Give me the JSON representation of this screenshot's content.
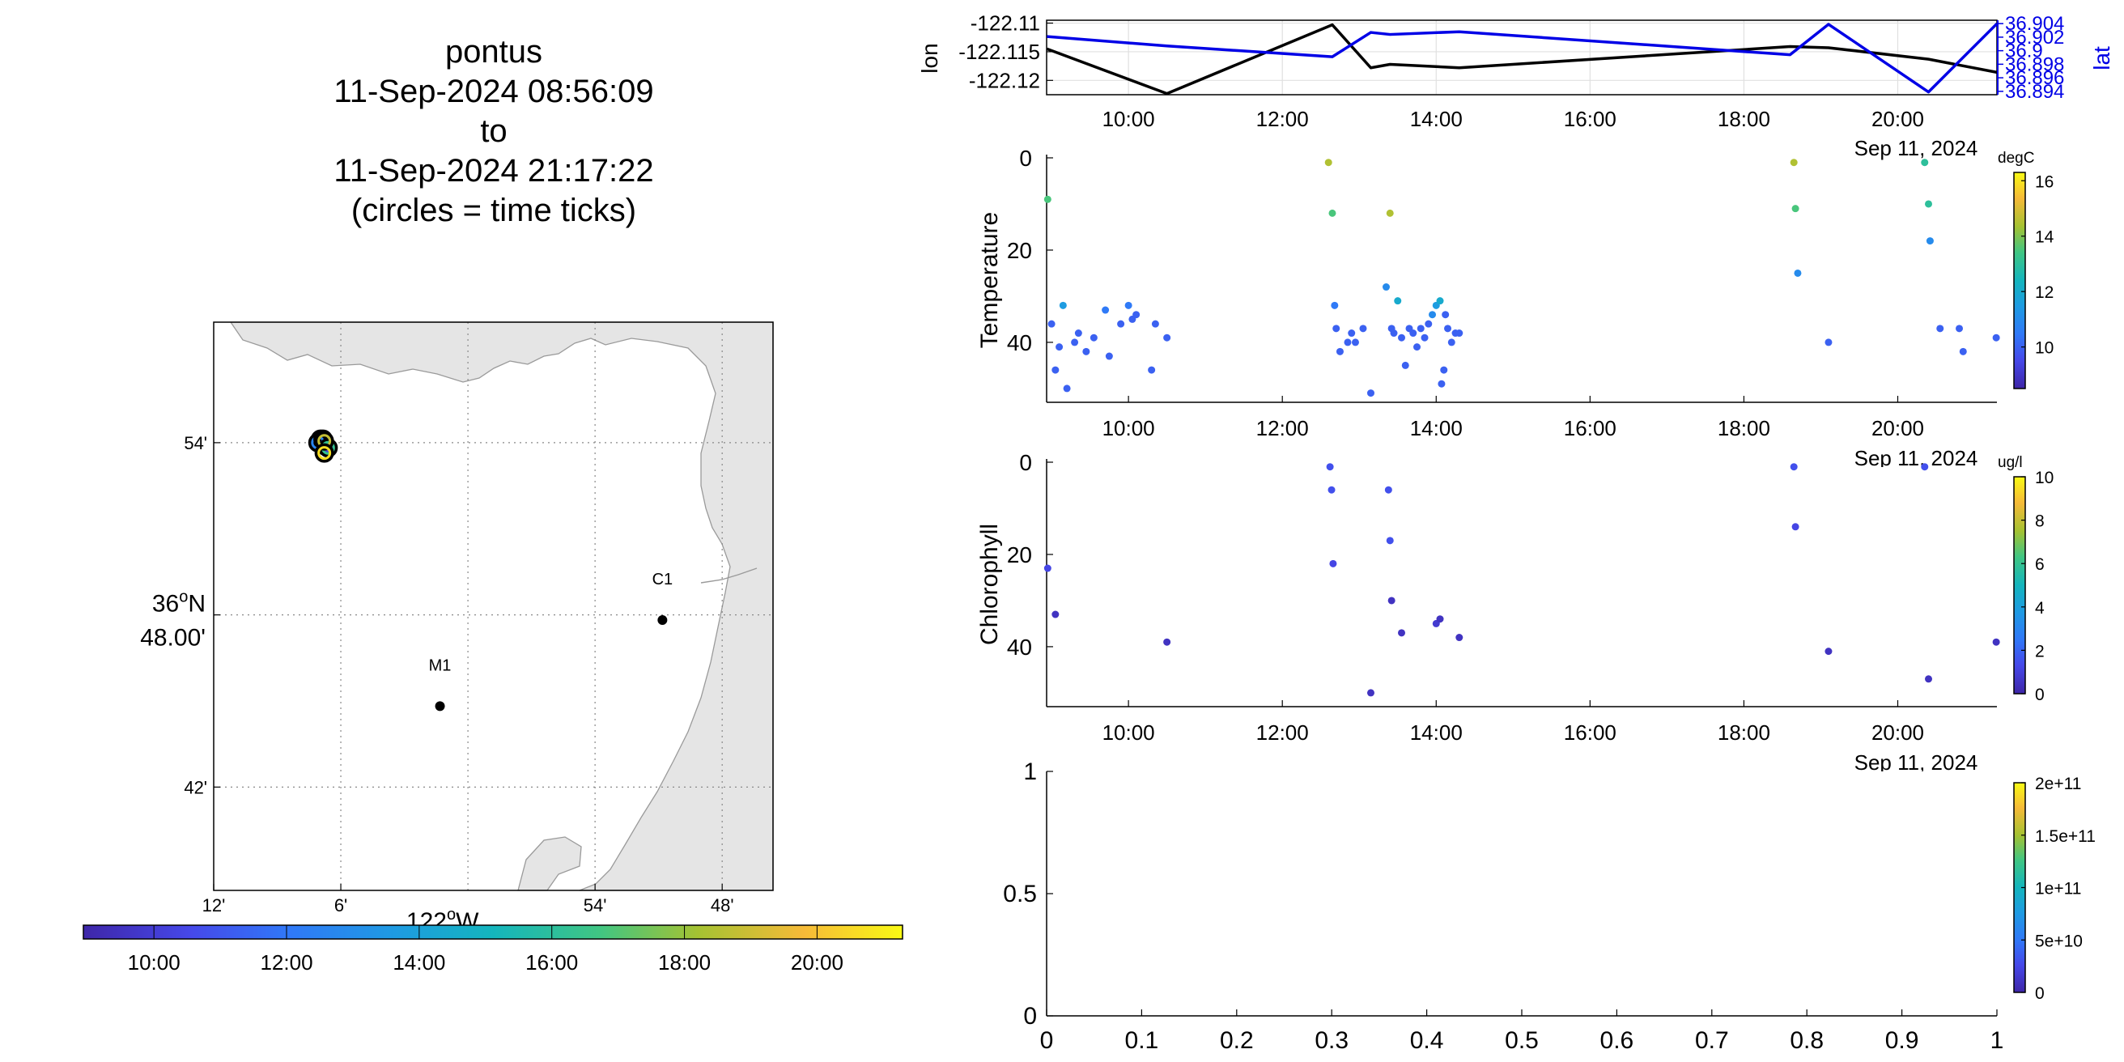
{
  "map_title": {
    "lines": [
      "pontus",
      "11-Sep-2024 08:56:09",
      "to",
      "11-Sep-2024 21:17:22",
      "(circles = time ticks)"
    ]
  },
  "map": {
    "lat_ticks": [
      {
        "lat": 36.9,
        "label": "54'"
      },
      {
        "lat": 36.8,
        "label_deg": "36",
        "label_min": "48.00'"
      },
      {
        "lat": 36.7,
        "label": "42'"
      }
    ],
    "lon_ticks": [
      {
        "lon": -122.2,
        "label": "12'"
      },
      {
        "lon": -122.1,
        "label": "6'"
      },
      {
        "lon": -121.9,
        "label": "54'"
      },
      {
        "lon": -121.8,
        "label": "48'"
      }
    ],
    "lon_axis_deg": "122",
    "lon_axis_hemi": "W",
    "lat_axis_hemi": "N",
    "grid_lons": [
      -122.1,
      -122.0,
      -121.9,
      -121.8
    ],
    "grid_lats": [
      36.9,
      36.8,
      36.7
    ],
    "stations": [
      {
        "name": "C1",
        "lat": 36.797,
        "lon": -121.847
      },
      {
        "name": "M1",
        "lat": 36.747,
        "lon": -122.022
      }
    ],
    "track_points": [
      {
        "lat": 36.902,
        "lon": -122.116,
        "t": 0.0
      },
      {
        "lat": 36.898,
        "lon": -122.112,
        "t": 0.1
      },
      {
        "lat": 36.9,
        "lon": -122.118,
        "t": 0.3
      },
      {
        "lat": 36.902,
        "lon": -122.114,
        "t": 0.45
      },
      {
        "lat": 36.897,
        "lon": -122.11,
        "t": 0.6
      },
      {
        "lat": 36.901,
        "lon": -122.113,
        "t": 0.8
      },
      {
        "lat": 36.894,
        "lon": -122.113,
        "t": 0.95
      }
    ],
    "colorbar": {
      "ticks": [
        "10:00",
        "12:00",
        "14:00",
        "16:00",
        "18:00",
        "20:00"
      ],
      "ticks_hours": [
        10,
        12,
        14,
        16,
        18,
        20
      ],
      "range_hours": [
        8.936,
        21.289
      ]
    }
  },
  "chart_data": [
    {
      "type": "line",
      "name": "position",
      "x_range_hours": [
        8.936,
        21.289
      ],
      "x_ticks": [
        "10:00",
        "12:00",
        "14:00",
        "16:00",
        "18:00",
        "20:00"
      ],
      "x_ticks_hours": [
        10,
        12,
        14,
        16,
        18,
        20
      ],
      "ylabel_left": "lon",
      "ylabel_right": "lat",
      "left_ticks": [
        "-122.11",
        "-122.115",
        "-122.12"
      ],
      "left_ticks_values": [
        -122.11,
        -122.115,
        -122.12
      ],
      "left_range": [
        -122.1225,
        -122.1095
      ],
      "right_ticks": [
        "36.904",
        "36.902",
        "36.9",
        "36.898",
        "36.896",
        "36.894"
      ],
      "right_ticks_values": [
        36.904,
        36.902,
        36.9,
        36.898,
        36.896,
        36.894
      ],
      "right_range": [
        36.8935,
        36.9045
      ],
      "date_label": "Sep 11, 2024",
      "series": [
        {
          "name": "lon",
          "color": "#000000",
          "hours": [
            8.94,
            10.5,
            12.65,
            13.15,
            13.4,
            14.3,
            18.6,
            19.1,
            20.4,
            21.29
          ],
          "values": [
            -122.1145,
            -122.1223,
            -122.1103,
            -122.1178,
            -122.1172,
            -122.1178,
            -122.1141,
            -122.1143,
            -122.1163,
            -122.1186
          ]
        },
        {
          "name": "lat",
          "color": "#0000e6",
          "hours": [
            8.94,
            10.5,
            12.65,
            13.15,
            13.4,
            14.3,
            18.6,
            19.1,
            20.4,
            21.29
          ],
          "values": [
            36.9021,
            36.9007,
            36.8991,
            36.9027,
            36.9024,
            36.9028,
            36.8994,
            36.9039,
            36.8939,
            36.904
          ]
        }
      ]
    },
    {
      "type": "scatter",
      "name": "temperature",
      "ylabel": "Temperature",
      "y_ticks": [
        "0",
        "20",
        "40"
      ],
      "y_ticks_values": [
        0,
        20,
        40
      ],
      "y_range": [
        0,
        53
      ],
      "x_range_hours": [
        8.936,
        21.289
      ],
      "x_ticks": [
        "10:00",
        "12:00",
        "14:00",
        "16:00",
        "18:00",
        "20:00"
      ],
      "x_ticks_hours": [
        10,
        12,
        14,
        16,
        18,
        20
      ],
      "date_label": "Sep 11, 2024",
      "colorbar_label": "degC",
      "colorbar_ticks": [
        "16",
        "14",
        "12",
        "10"
      ],
      "colorbar_ticks_values": [
        16,
        14,
        12,
        10
      ],
      "colorbar_range": [
        8.5,
        16.3
      ],
      "points": [
        [
          8.95,
          9,
          13.5
        ],
        [
          9.0,
          36,
          10
        ],
        [
          9.05,
          46,
          10
        ],
        [
          9.1,
          41,
          10
        ],
        [
          9.15,
          32,
          11.5
        ],
        [
          9.2,
          50,
          10
        ],
        [
          9.3,
          40,
          10
        ],
        [
          9.35,
          38,
          10
        ],
        [
          9.45,
          42,
          10
        ],
        [
          9.55,
          39,
          10
        ],
        [
          9.7,
          33,
          10.5
        ],
        [
          9.75,
          43,
          10
        ],
        [
          9.9,
          36,
          10
        ],
        [
          10.0,
          32,
          10.5
        ],
        [
          10.05,
          35,
          10
        ],
        [
          10.1,
          34,
          10
        ],
        [
          10.3,
          46,
          10
        ],
        [
          10.35,
          36,
          10
        ],
        [
          10.5,
          39,
          10
        ],
        [
          12.6,
          1,
          14.5
        ],
        [
          12.65,
          12,
          13.5
        ],
        [
          12.68,
          32,
          10.5
        ],
        [
          12.7,
          37,
          10
        ],
        [
          12.75,
          42,
          10
        ],
        [
          12.85,
          40,
          10
        ],
        [
          12.9,
          38,
          10
        ],
        [
          12.95,
          40,
          10
        ],
        [
          13.05,
          37,
          10
        ],
        [
          13.15,
          51,
          10
        ],
        [
          13.35,
          28,
          11
        ],
        [
          13.4,
          12,
          14.5
        ],
        [
          13.42,
          37,
          10
        ],
        [
          13.45,
          38,
          10
        ],
        [
          13.5,
          31,
          12
        ],
        [
          13.55,
          39,
          10
        ],
        [
          13.6,
          45,
          10
        ],
        [
          13.65,
          37,
          10
        ],
        [
          13.7,
          38,
          10
        ],
        [
          13.75,
          41,
          10
        ],
        [
          13.8,
          37,
          10
        ],
        [
          13.85,
          39,
          10
        ],
        [
          13.9,
          36,
          10
        ],
        [
          13.95,
          34,
          11
        ],
        [
          14.0,
          32,
          11.5
        ],
        [
          14.05,
          31,
          12
        ],
        [
          14.07,
          49,
          10
        ],
        [
          14.1,
          46,
          10
        ],
        [
          14.12,
          34,
          10
        ],
        [
          14.15,
          37,
          10
        ],
        [
          14.2,
          40,
          10
        ],
        [
          14.25,
          38,
          10
        ],
        [
          14.3,
          38,
          10
        ],
        [
          18.65,
          1,
          14.5
        ],
        [
          18.67,
          11,
          13.5
        ],
        [
          18.7,
          25,
          11
        ],
        [
          19.1,
          40,
          10
        ],
        [
          20.35,
          1,
          13
        ],
        [
          20.4,
          10,
          13
        ],
        [
          20.42,
          18,
          11
        ],
        [
          20.55,
          37,
          10
        ],
        [
          20.8,
          37,
          10
        ],
        [
          20.85,
          42,
          10
        ],
        [
          21.28,
          39,
          10
        ]
      ]
    },
    {
      "type": "scatter",
      "name": "chlorophyll",
      "ylabel": "Chlorophyll",
      "y_ticks": [
        "0",
        "20",
        "40"
      ],
      "y_ticks_values": [
        0,
        20,
        40
      ],
      "y_range": [
        0,
        53
      ],
      "x_range_hours": [
        8.936,
        21.289
      ],
      "x_ticks": [
        "10:00",
        "12:00",
        "14:00",
        "16:00",
        "18:00",
        "20:00"
      ],
      "x_ticks_hours": [
        10,
        12,
        14,
        16,
        18,
        20
      ],
      "date_label": "Sep 11, 2024",
      "colorbar_label": "ug/l",
      "colorbar_ticks": [
        "10",
        "8",
        "6",
        "4",
        "2",
        "0"
      ],
      "colorbar_ticks_values": [
        10,
        8,
        6,
        4,
        2,
        0
      ],
      "colorbar_range": [
        0,
        10
      ],
      "points": [
        [
          8.95,
          23,
          1.2
        ],
        [
          9.05,
          33,
          0.5
        ],
        [
          10.5,
          39,
          0.5
        ],
        [
          12.62,
          1,
          1.5
        ],
        [
          12.64,
          6,
          1.5
        ],
        [
          12.66,
          22,
          1.2
        ],
        [
          13.15,
          50,
          0.5
        ],
        [
          13.38,
          6,
          1.5
        ],
        [
          13.4,
          17,
          1.5
        ],
        [
          13.42,
          30,
          0.5
        ],
        [
          13.55,
          37,
          0.5
        ],
        [
          14.0,
          35,
          0.8
        ],
        [
          14.05,
          34,
          0.5
        ],
        [
          14.3,
          38,
          0.5
        ],
        [
          18.65,
          1,
          1.5
        ],
        [
          18.67,
          14,
          1.2
        ],
        [
          19.1,
          41,
          0.5
        ],
        [
          20.35,
          1,
          1.5
        ],
        [
          20.4,
          47,
          0.5
        ],
        [
          21.28,
          39,
          0.5
        ]
      ]
    },
    {
      "type": "scatter",
      "name": "empty",
      "x_ticks": [
        "0",
        "0.1",
        "0.2",
        "0.3",
        "0.4",
        "0.5",
        "0.6",
        "0.7",
        "0.8",
        "0.9",
        "1"
      ],
      "x_ticks_values": [
        0,
        0.1,
        0.2,
        0.3,
        0.4,
        0.5,
        0.6,
        0.7,
        0.8,
        0.9,
        1
      ],
      "y_ticks": [
        "1",
        "0.5",
        "0"
      ],
      "y_ticks_values": [
        1,
        0.5,
        0
      ],
      "colorbar_ticks": [
        "2e+11",
        "1.5e+11",
        "1e+11",
        "5e+10",
        "0"
      ],
      "colorbar_ticks_values": [
        200000000000.0,
        150000000000.0,
        100000000000.0,
        50000000000.0,
        0
      ],
      "colorbar_range": [
        0,
        200000000000.0
      ],
      "points": []
    }
  ]
}
